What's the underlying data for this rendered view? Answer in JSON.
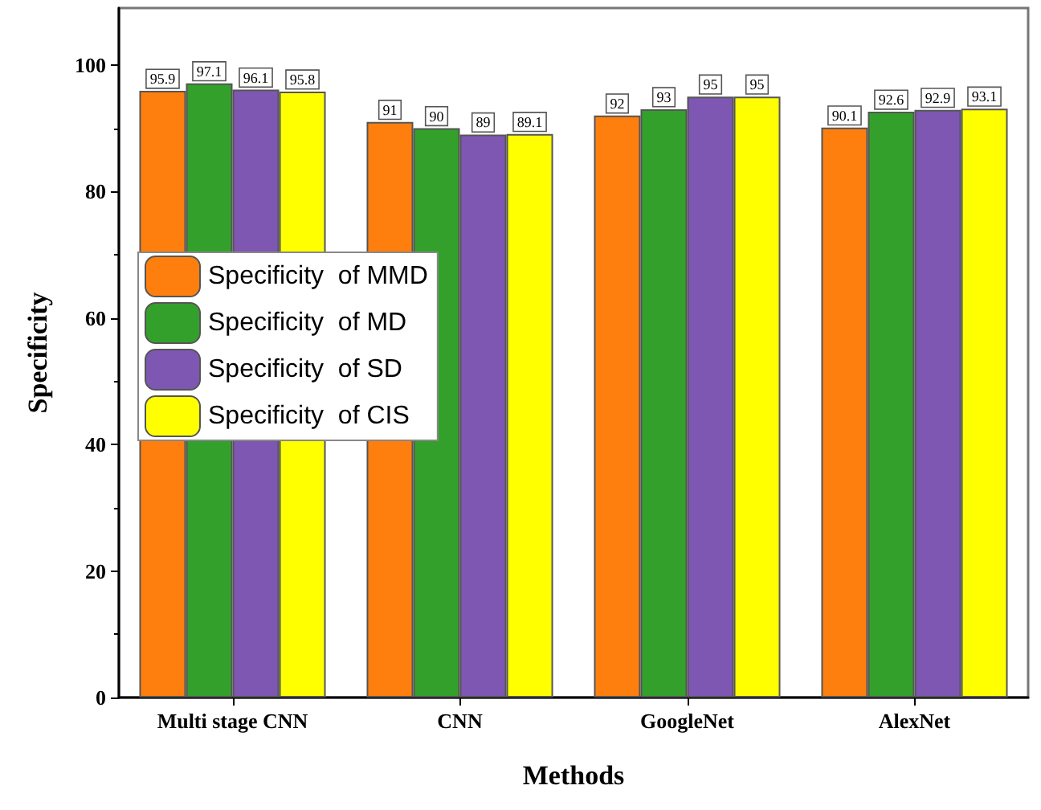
{
  "chart_data": {
    "type": "bar",
    "xlabel": "Methods",
    "ylabel": "Specificity",
    "categories": [
      "Multi stage CNN",
      "CNN",
      "GoogleNet",
      "AlexNet"
    ],
    "series": [
      {
        "name": "Specificity  of MMD",
        "color": "#ff7f0e",
        "values": [
          95.9,
          91,
          92,
          90.1
        ]
      },
      {
        "name": "Specificity  of MD",
        "color": "#33a02c",
        "values": [
          97.1,
          90,
          93,
          92.6
        ]
      },
      {
        "name": "Specificity  of SD",
        "color": "#7e57b2",
        "values": [
          96.1,
          89,
          95,
          92.9
        ]
      },
      {
        "name": "Specificity  of CIS",
        "color": "#ffff00",
        "values": [
          95.8,
          89.1,
          95,
          93.1
        ]
      }
    ],
    "ylim": [
      0,
      109
    ],
    "yticks": [
      0,
      20,
      40,
      60,
      80,
      100
    ],
    "grid": false,
    "legend": "left",
    "data_labels": true
  }
}
